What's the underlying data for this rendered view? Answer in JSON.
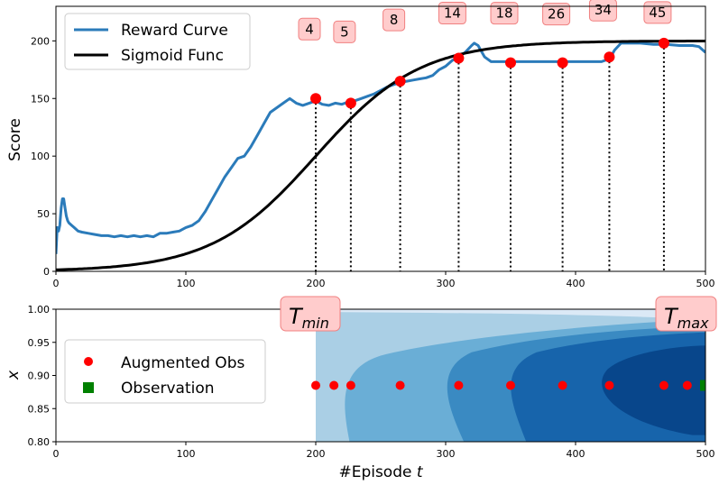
{
  "chart_data": [
    {
      "type": "line",
      "ylabel": "Score",
      "xlim": [
        0,
        500
      ],
      "ylim": [
        0,
        230
      ],
      "xticks": [
        0,
        100,
        200,
        300,
        400,
        500
      ],
      "yticks": [
        0,
        50,
        100,
        150,
        200
      ],
      "legend_position": "top-left",
      "series": [
        {
          "name": "Reward Curve",
          "color": "#2b7bba",
          "x": [
            0,
            1,
            2,
            3,
            4,
            5,
            6,
            7,
            8,
            9,
            10,
            12,
            14,
            17,
            20,
            25,
            30,
            35,
            40,
            45,
            50,
            55,
            60,
            65,
            70,
            75,
            80,
            85,
            90,
            95,
            100,
            105,
            110,
            115,
            120,
            125,
            130,
            135,
            140,
            145,
            150,
            155,
            160,
            165,
            170,
            175,
            180,
            185,
            190,
            195,
            200,
            205,
            210,
            215,
            220,
            225,
            230,
            235,
            240,
            245,
            250,
            255,
            260,
            265,
            270,
            275,
            280,
            285,
            290,
            295,
            300,
            305,
            310,
            315,
            320,
            322,
            325,
            330,
            335,
            340,
            345,
            350,
            360,
            370,
            380,
            390,
            400,
            410,
            420,
            425,
            428,
            430,
            435,
            440,
            450,
            460,
            470,
            480,
            490,
            495,
            500
          ],
          "y": [
            15,
            38,
            35,
            40,
            55,
            63,
            63,
            55,
            48,
            44,
            42,
            40,
            38,
            35,
            34,
            33,
            32,
            31,
            31,
            30,
            31,
            30,
            31,
            30,
            31,
            30,
            33,
            33,
            34,
            35,
            38,
            40,
            44,
            52,
            62,
            72,
            82,
            90,
            98,
            100,
            108,
            118,
            128,
            138,
            142,
            146,
            150,
            146,
            144,
            146,
            148,
            145,
            144,
            146,
            145,
            147,
            148,
            150,
            152,
            154,
            157,
            160,
            162,
            164,
            165,
            166,
            167,
            168,
            170,
            175,
            178,
            183,
            186,
            190,
            196,
            198,
            196,
            186,
            182,
            182,
            182,
            182,
            182,
            182,
            182,
            182,
            182,
            182,
            182,
            184,
            188,
            192,
            198,
            198,
            198,
            197,
            197,
            196,
            196,
            195,
            190
          ]
        },
        {
          "name": "Sigmoid Func",
          "color": "#000000",
          "function": "200 / (1 + exp(-(t - 200) / 40))",
          "samples": [
            0,
            10,
            20,
            30,
            40,
            50,
            60,
            70,
            80,
            90,
            100,
            110,
            120,
            130,
            140,
            150,
            160,
            170,
            180,
            190,
            200,
            210,
            220,
            230,
            240,
            250,
            260,
            270,
            280,
            290,
            300,
            310,
            320,
            330,
            340,
            350,
            360,
            370,
            380,
            390,
            400,
            410,
            420,
            430,
            440,
            450,
            460,
            470,
            480,
            490,
            500
          ]
        }
      ],
      "markers": [
        {
          "label": "4",
          "x": 200,
          "y": 150
        },
        {
          "label": "5",
          "x": 227,
          "y": 146
        },
        {
          "label": "8",
          "x": 265,
          "y": 165
        },
        {
          "label": "14",
          "x": 310,
          "y": 185
        },
        {
          "label": "18",
          "x": 350,
          "y": 181
        },
        {
          "label": "26",
          "x": 390,
          "y": 181
        },
        {
          "label": "34",
          "x": 426,
          "y": 186
        },
        {
          "label": "45",
          "x": 468,
          "y": 198
        }
      ],
      "marker_color": "#ff0000",
      "label_box_fill": "#ffcccc",
      "label_box_stroke": "#f08080"
    },
    {
      "type": "contour",
      "xlabel": "#Episode t",
      "ylabel": "x",
      "xlim": [
        0,
        500
      ],
      "ylim": [
        0.8,
        1.0
      ],
      "xticks": [
        0,
        100,
        200,
        300,
        400,
        500
      ],
      "yticks": [
        0.8,
        0.85,
        0.9,
        0.95,
        1.0
      ],
      "legend_position": "center-left",
      "region_x_start": 200,
      "region_x_end": 500,
      "levels_colors": [
        "#dbe9f6",
        "#aacfe5",
        "#6aaed6",
        "#3a8ac2",
        "#1764ab",
        "#08468b"
      ],
      "annotations": [
        {
          "label": "T_min",
          "x": 200
        },
        {
          "label": "T_max",
          "x": 500
        }
      ],
      "series": [
        {
          "name": "Augmented Obs",
          "color": "#ff0000",
          "x": [
            200,
            214,
            227,
            265,
            310,
            350,
            390,
            426,
            468,
            486
          ],
          "y": [
            0.885,
            0.885,
            0.885,
            0.885,
            0.885,
            0.885,
            0.885,
            0.885,
            0.885,
            0.885
          ]
        },
        {
          "name": "Observation",
          "color": "#008000",
          "x": [
            500
          ],
          "y": [
            0.885
          ]
        }
      ]
    }
  ]
}
